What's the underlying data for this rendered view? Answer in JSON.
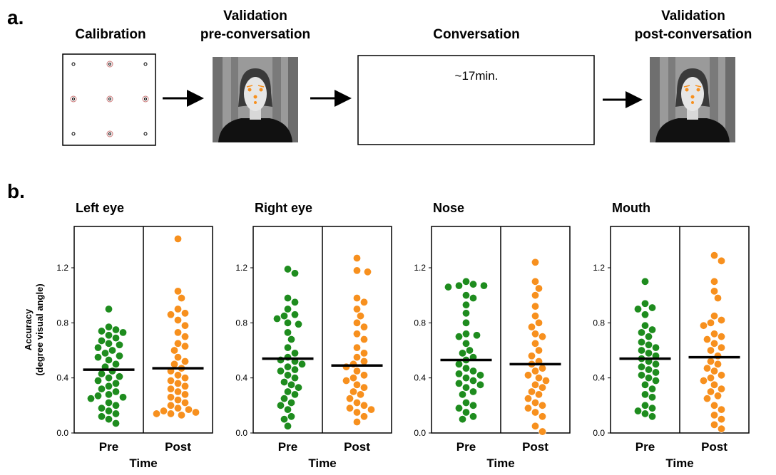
{
  "panel_a": {
    "label": "a.",
    "steps": [
      {
        "title": [
          "Calibration"
        ]
      },
      {
        "title": [
          "Validation",
          "pre-conversation"
        ]
      },
      {
        "title": [
          "Conversation"
        ],
        "note": "~17min."
      },
      {
        "title": [
          "Validation",
          "post-conversation"
        ]
      }
    ]
  },
  "panel_b_label": "b.",
  "chart_data": [
    {
      "type": "strip",
      "title": "Left eye",
      "ylabel": "Accuracy",
      "ylabel_sub": "(degree visual angle)",
      "xlabel": "Time",
      "categories": [
        "Pre",
        "Post"
      ],
      "ylim": [
        0,
        1.5
      ],
      "yticks": [
        {
          "value": 0,
          "label": "0.0"
        },
        0.4,
        0.8,
        1.2
      ],
      "series": [
        {
          "color": "#1e8c1e",
          "mean": 0.46,
          "values": [
            0.9,
            0.77,
            0.75,
            0.74,
            0.73,
            0.71,
            0.69,
            0.67,
            0.65,
            0.64,
            0.62,
            0.6,
            0.58,
            0.56,
            0.55,
            0.53,
            0.5,
            0.48,
            0.45,
            0.43,
            0.41,
            0.4,
            0.38,
            0.36,
            0.34,
            0.32,
            0.3,
            0.28,
            0.27,
            0.26,
            0.25,
            0.22,
            0.2,
            0.18,
            0.16,
            0.14,
            0.12,
            0.1,
            0.07
          ]
        },
        {
          "color": "#f7901e",
          "mean": 0.47,
          "values": [
            1.41,
            1.03,
            0.98,
            0.9,
            0.87,
            0.86,
            0.82,
            0.78,
            0.73,
            0.7,
            0.65,
            0.63,
            0.6,
            0.55,
            0.52,
            0.5,
            0.47,
            0.45,
            0.42,
            0.4,
            0.38,
            0.36,
            0.34,
            0.32,
            0.3,
            0.28,
            0.26,
            0.24,
            0.22,
            0.2,
            0.18,
            0.17,
            0.16,
            0.15,
            0.14,
            0.14,
            0.13
          ]
        }
      ]
    },
    {
      "type": "strip",
      "title": "Right eye",
      "xlabel": "Time",
      "categories": [
        "Pre",
        "Post"
      ],
      "ylim": [
        0,
        1.5
      ],
      "yticks": [
        {
          "value": 0,
          "label": "0.0"
        },
        0.4,
        0.8,
        1.2
      ],
      "series": [
        {
          "color": "#1e8c1e",
          "mean": 0.54,
          "values": [
            1.19,
            1.16,
            0.98,
            0.95,
            0.9,
            0.86,
            0.85,
            0.83,
            0.8,
            0.79,
            0.73,
            0.68,
            0.62,
            0.58,
            0.55,
            0.53,
            0.52,
            0.5,
            0.48,
            0.46,
            0.45,
            0.42,
            0.4,
            0.37,
            0.35,
            0.33,
            0.3,
            0.28,
            0.25,
            0.22,
            0.2,
            0.17,
            0.12,
            0.1,
            0.05
          ]
        },
        {
          "color": "#f7901e",
          "mean": 0.49,
          "values": [
            1.27,
            1.18,
            1.17,
            0.98,
            0.95,
            0.9,
            0.85,
            0.8,
            0.77,
            0.72,
            0.68,
            0.62,
            0.58,
            0.55,
            0.52,
            0.5,
            0.48,
            0.45,
            0.42,
            0.4,
            0.38,
            0.35,
            0.33,
            0.3,
            0.28,
            0.25,
            0.22,
            0.2,
            0.18,
            0.17,
            0.15,
            0.12,
            0.08
          ]
        }
      ]
    },
    {
      "type": "strip",
      "title": "Nose",
      "xlabel": "Time",
      "categories": [
        "Pre",
        "Post"
      ],
      "ylim": [
        0,
        1.5
      ],
      "yticks": [
        {
          "value": 0,
          "label": "0.0"
        },
        0.4,
        0.8,
        1.2
      ],
      "series": [
        {
          "color": "#1e8c1e",
          "mean": 0.53,
          "values": [
            1.1,
            1.08,
            1.07,
            1.07,
            1.06,
            1.0,
            0.98,
            0.93,
            0.87,
            0.8,
            0.72,
            0.71,
            0.7,
            0.65,
            0.6,
            0.58,
            0.55,
            0.53,
            0.5,
            0.47,
            0.45,
            0.43,
            0.42,
            0.4,
            0.38,
            0.36,
            0.35,
            0.33,
            0.3,
            0.28,
            0.22,
            0.2,
            0.18,
            0.15,
            0.12,
            0.1
          ]
        },
        {
          "color": "#f7901e",
          "mean": 0.5,
          "values": [
            1.24,
            1.1,
            1.05,
            1.0,
            0.92,
            0.85,
            0.8,
            0.77,
            0.72,
            0.7,
            0.65,
            0.6,
            0.56,
            0.52,
            0.5,
            0.47,
            0.45,
            0.42,
            0.4,
            0.38,
            0.35,
            0.33,
            0.3,
            0.28,
            0.25,
            0.22,
            0.2,
            0.18,
            0.15,
            0.12,
            0.05,
            0.01
          ]
        }
      ]
    },
    {
      "type": "strip",
      "title": "Mouth",
      "xlabel": "Time",
      "categories": [
        "Pre",
        "Post"
      ],
      "ylim": [
        0,
        1.5
      ],
      "yticks": [
        {
          "value": 0,
          "label": "0.0"
        },
        0.4,
        0.8,
        1.2
      ],
      "series": [
        {
          "color": "#1e8c1e",
          "mean": 0.54,
          "values": [
            1.1,
            0.94,
            0.91,
            0.9,
            0.86,
            0.78,
            0.75,
            0.73,
            0.7,
            0.66,
            0.64,
            0.62,
            0.6,
            0.58,
            0.56,
            0.54,
            0.52,
            0.5,
            0.48,
            0.46,
            0.44,
            0.42,
            0.4,
            0.38,
            0.35,
            0.32,
            0.28,
            0.26,
            0.2,
            0.18,
            0.16,
            0.14,
            0.12
          ]
        },
        {
          "color": "#f7901e",
          "mean": 0.55,
          "values": [
            1.29,
            1.25,
            1.1,
            1.03,
            0.98,
            0.85,
            0.82,
            0.8,
            0.78,
            0.72,
            0.7,
            0.68,
            0.65,
            0.62,
            0.6,
            0.56,
            0.52,
            0.5,
            0.47,
            0.45,
            0.42,
            0.4,
            0.38,
            0.35,
            0.32,
            0.3,
            0.27,
            0.25,
            0.2,
            0.17,
            0.13,
            0.1,
            0.06,
            0.03
          ]
        }
      ]
    }
  ]
}
